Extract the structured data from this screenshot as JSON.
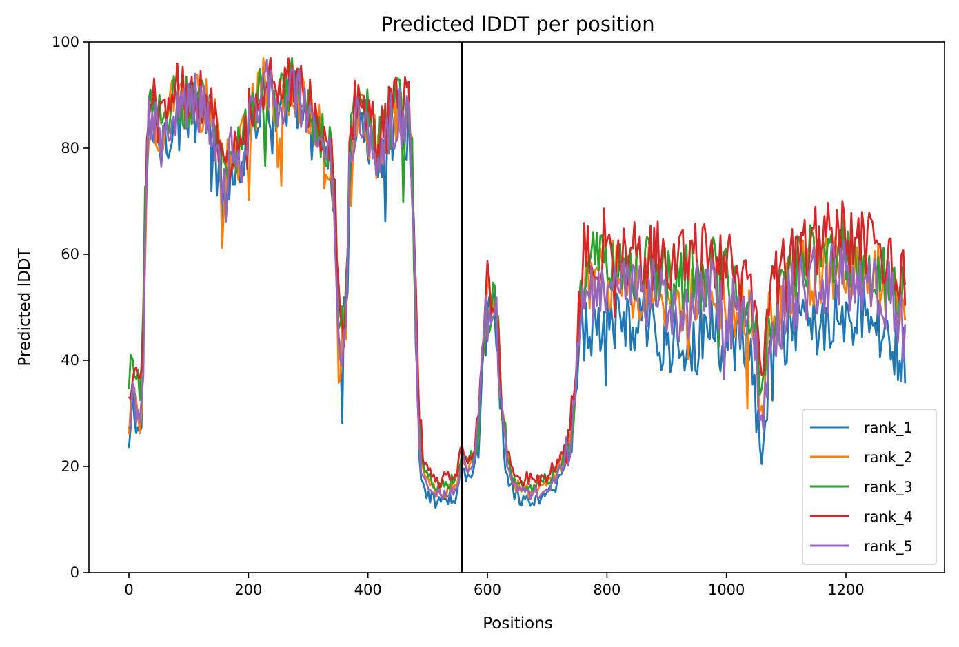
{
  "chart_data": {
    "type": "line",
    "title": "Predicted lDDT per position",
    "xlabel": "Positions",
    "ylabel": "Predicted lDDT",
    "xlim": [
      -67,
      1365
    ],
    "ylim": [
      0,
      100
    ],
    "xticks": [
      0,
      200,
      400,
      600,
      800,
      1000,
      1200
    ],
    "yticks": [
      0,
      20,
      40,
      60,
      80,
      100
    ],
    "grid": false,
    "legend_position": "lower right",
    "vertical_line": {
      "x": 557,
      "color": "#000000"
    },
    "profile_points": [
      [
        0,
        24
      ],
      [
        3,
        29
      ],
      [
        6,
        33
      ],
      [
        10,
        31
      ],
      [
        14,
        29
      ],
      [
        18,
        28
      ],
      [
        22,
        31
      ],
      [
        26,
        52
      ],
      [
        30,
        76
      ],
      [
        34,
        87
      ],
      [
        45,
        84
      ],
      [
        55,
        82
      ],
      [
        68,
        86
      ],
      [
        80,
        88
      ],
      [
        92,
        87
      ],
      [
        105,
        89
      ],
      [
        118,
        88
      ],
      [
        130,
        87
      ],
      [
        142,
        85
      ],
      [
        152,
        78
      ],
      [
        158,
        70
      ],
      [
        166,
        76
      ],
      [
        176,
        80
      ],
      [
        186,
        78
      ],
      [
        196,
        82
      ],
      [
        206,
        86
      ],
      [
        216,
        89
      ],
      [
        228,
        91
      ],
      [
        240,
        90
      ],
      [
        252,
        87
      ],
      [
        262,
        88
      ],
      [
        272,
        92
      ],
      [
        282,
        90
      ],
      [
        292,
        87
      ],
      [
        302,
        86
      ],
      [
        312,
        84
      ],
      [
        322,
        82
      ],
      [
        332,
        80
      ],
      [
        340,
        77
      ],
      [
        346,
        64
      ],
      [
        350,
        48
      ],
      [
        354,
        42
      ],
      [
        358,
        44
      ],
      [
        364,
        52
      ],
      [
        370,
        78
      ],
      [
        382,
        88
      ],
      [
        390,
        87
      ],
      [
        398,
        84
      ],
      [
        406,
        82
      ],
      [
        416,
        78
      ],
      [
        426,
        80
      ],
      [
        436,
        84
      ],
      [
        446,
        86
      ],
      [
        456,
        86
      ],
      [
        466,
        85
      ],
      [
        472,
        83
      ],
      [
        476,
        68
      ],
      [
        481,
        42
      ],
      [
        486,
        26
      ],
      [
        492,
        19
      ],
      [
        500,
        16
      ],
      [
        512,
        15
      ],
      [
        530,
        15
      ],
      [
        546,
        16
      ],
      [
        552,
        18
      ],
      [
        558,
        22
      ],
      [
        566,
        19
      ],
      [
        578,
        21
      ],
      [
        586,
        27
      ],
      [
        593,
        45
      ],
      [
        600,
        50
      ],
      [
        608,
        50
      ],
      [
        614,
        48
      ],
      [
        620,
        38
      ],
      [
        626,
        27
      ],
      [
        634,
        20
      ],
      [
        644,
        16
      ],
      [
        660,
        15
      ],
      [
        680,
        15
      ],
      [
        700,
        16
      ],
      [
        720,
        19
      ],
      [
        735,
        23
      ],
      [
        745,
        30
      ],
      [
        752,
        45
      ],
      [
        760,
        54
      ],
      [
        780,
        55
      ],
      [
        800,
        56
      ],
      [
        825,
        55
      ],
      [
        850,
        54
      ],
      [
        875,
        54
      ],
      [
        900,
        52
      ],
      [
        925,
        52
      ],
      [
        950,
        53
      ],
      [
        975,
        54
      ],
      [
        1000,
        51
      ],
      [
        1020,
        50
      ],
      [
        1040,
        48
      ],
      [
        1048,
        44
      ],
      [
        1054,
        35
      ],
      [
        1058,
        27
      ],
      [
        1063,
        32
      ],
      [
        1070,
        45
      ],
      [
        1080,
        48
      ],
      [
        1100,
        52
      ],
      [
        1125,
        55
      ],
      [
        1150,
        56
      ],
      [
        1175,
        57
      ],
      [
        1200,
        58
      ],
      [
        1225,
        56
      ],
      [
        1250,
        55
      ],
      [
        1275,
        53
      ],
      [
        1290,
        50
      ],
      [
        1300,
        47
      ]
    ],
    "series": [
      {
        "name": "rank_1",
        "color": "#1f77b4"
      },
      {
        "name": "rank_2",
        "color": "#ff7f0e"
      },
      {
        "name": "rank_3",
        "color": "#2ca02c"
      },
      {
        "name": "rank_4",
        "color": "#d62728"
      },
      {
        "name": "rank_5",
        "color": "#9467bd"
      }
    ]
  }
}
